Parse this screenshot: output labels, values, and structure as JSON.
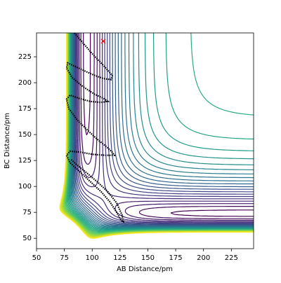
{
  "chart_data": {
    "type": "contour",
    "xlabel": "AB Distance/pm",
    "ylabel": "BC Distance/pm",
    "xlim": [
      50,
      245
    ],
    "ylim": [
      40,
      248
    ],
    "xticks": [
      50,
      75,
      100,
      125,
      150,
      175,
      200,
      225
    ],
    "yticks": [
      50,
      75,
      100,
      125,
      150,
      175,
      200,
      225
    ],
    "series": [
      {
        "color": "#000000",
        "x": [
          84,
          92,
          100,
          108,
          114,
          118,
          117,
          110,
          100,
          90,
          82,
          78,
          77,
          82,
          92,
          102,
          110,
          114,
          108,
          98,
          88,
          80,
          77,
          79,
          86,
          95,
          104,
          112,
          118,
          120,
          112,
          100,
          90,
          80,
          77,
          80,
          88,
          98,
          108,
          116,
          122,
          126,
          128,
          127,
          122,
          114,
          104,
          94,
          86,
          81
        ],
        "y": [
          248,
          238,
          228,
          219,
          212,
          207,
          203,
          204,
          208,
          213,
          217,
          219,
          214,
          205,
          196,
          189,
          185,
          182,
          181,
          182,
          185,
          188,
          184,
          175,
          165,
          155,
          146,
          139,
          133,
          130,
          130,
          131,
          133,
          134,
          130,
          123,
          115,
          105,
          95,
          85,
          75,
          67,
          66,
          72,
          84,
          95,
          105,
          114,
          121,
          126
        ]
      }
    ],
    "start": {
      "x": 110,
      "y": 240,
      "color": "#ff0000"
    }
  }
}
